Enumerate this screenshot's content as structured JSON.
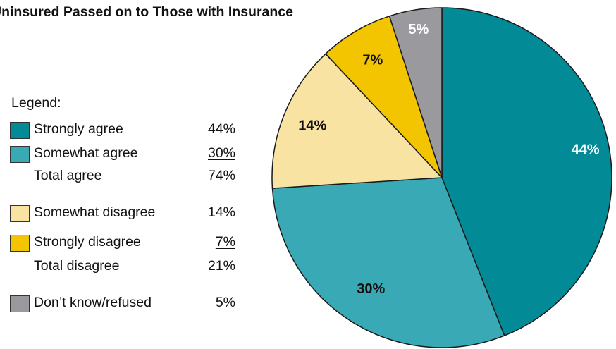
{
  "chart_data": {
    "type": "pie",
    "title": "Uninsured Passed on to Those with Insurance",
    "legend_heading": "Legend:",
    "slices": [
      {
        "label": "Strongly agree",
        "value": 44,
        "display": "44%",
        "color": "#028a96",
        "label_color": "#ffffff"
      },
      {
        "label": "Somewhat agree",
        "value": 30,
        "display": "30%",
        "color": "#39a9b6",
        "label_color": "#111111"
      },
      {
        "label": "Somewhat disagree",
        "value": 14,
        "display": "14%",
        "color": "#f9e3a2",
        "label_color": "#111111"
      },
      {
        "label": "Strongly disagree",
        "value": 7,
        "display": "7%",
        "color": "#f2c500",
        "label_color": "#111111"
      },
      {
        "label": "Don’t know/refused",
        "value": 5,
        "display": "5%",
        "color": "#9a9a9e",
        "label_color": "#ffffff"
      }
    ],
    "legend_rows": {
      "strongly_agree": {
        "label": "Strongly agree",
        "value": "44%"
      },
      "somewhat_agree": {
        "label": "Somewhat agree",
        "value": "30%"
      },
      "total_agree": {
        "label": "Total agree",
        "value": "74%"
      },
      "somewhat_disagree": {
        "label": "Somewhat disagree",
        "value": "14%"
      },
      "strongly_disagree": {
        "label": "Strongly disagree",
        "value": "7%"
      },
      "total_disagree": {
        "label": "Total disagree",
        "value": "21%"
      },
      "dont_know": {
        "label": "Don’t know/refused",
        "value": "5%"
      }
    }
  }
}
